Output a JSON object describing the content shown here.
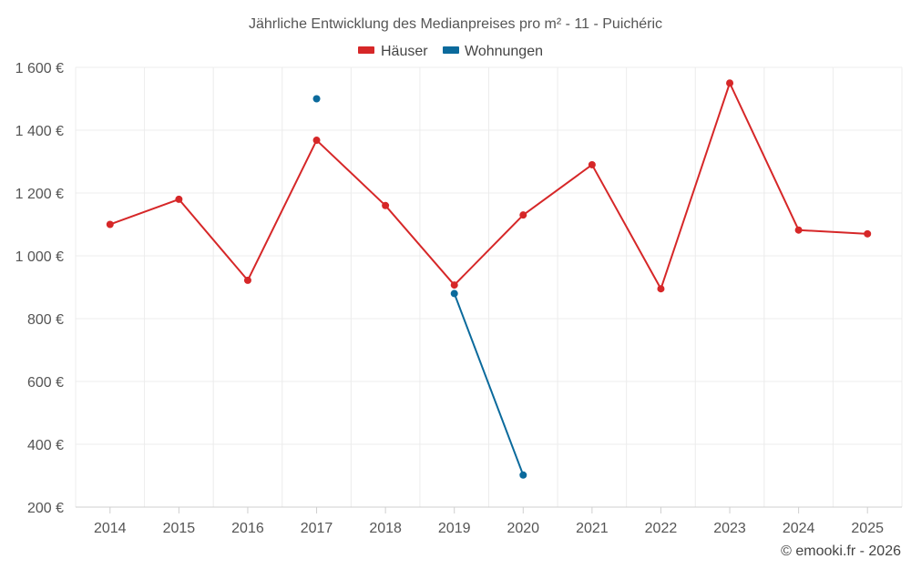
{
  "chart_data": {
    "type": "line",
    "title": "Jährliche Entwicklung des Medianpreises pro m² - 11 - Puichéric",
    "categories": [
      "2014",
      "2015",
      "2016",
      "2017",
      "2018",
      "2019",
      "2020",
      "2021",
      "2022",
      "2023",
      "2024",
      "2025"
    ],
    "ylim": [
      200,
      1600
    ],
    "yticks": [
      200,
      400,
      600,
      800,
      1000,
      1200,
      1400,
      1600
    ],
    "ytick_labels": [
      "200 €",
      "400 €",
      "600 €",
      "800 €",
      "1 000 €",
      "1 200 €",
      "1 400 €",
      "1 600 €"
    ],
    "legend_position": "top-center",
    "grid": true,
    "series": [
      {
        "name": "Häuser",
        "color": "#d62728",
        "values": [
          1100,
          1180,
          922,
          1368,
          1160,
          907,
          1130,
          1290,
          895,
          1550,
          1082,
          1070
        ]
      },
      {
        "name": "Wohnungen",
        "color": "#0b6a9c",
        "values": [
          null,
          null,
          null,
          1500,
          null,
          880,
          302,
          null,
          null,
          null,
          null,
          null
        ]
      }
    ]
  },
  "credit": "© emooki.fr - 2026"
}
